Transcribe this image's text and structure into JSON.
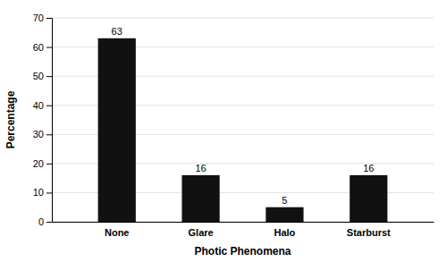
{
  "chart_data": {
    "type": "bar",
    "xlabel": "Photic Phenomena",
    "ylabel": "Percentage",
    "categories": [
      "None",
      "Glare",
      "Halo",
      "Starburst"
    ],
    "values": [
      63,
      16,
      5,
      16
    ],
    "color": "#111111",
    "ylim": [
      0,
      70
    ],
    "yticks": [
      0,
      10,
      20,
      30,
      40,
      50,
      60,
      70
    ],
    "grid": true,
    "data_labels": true
  }
}
